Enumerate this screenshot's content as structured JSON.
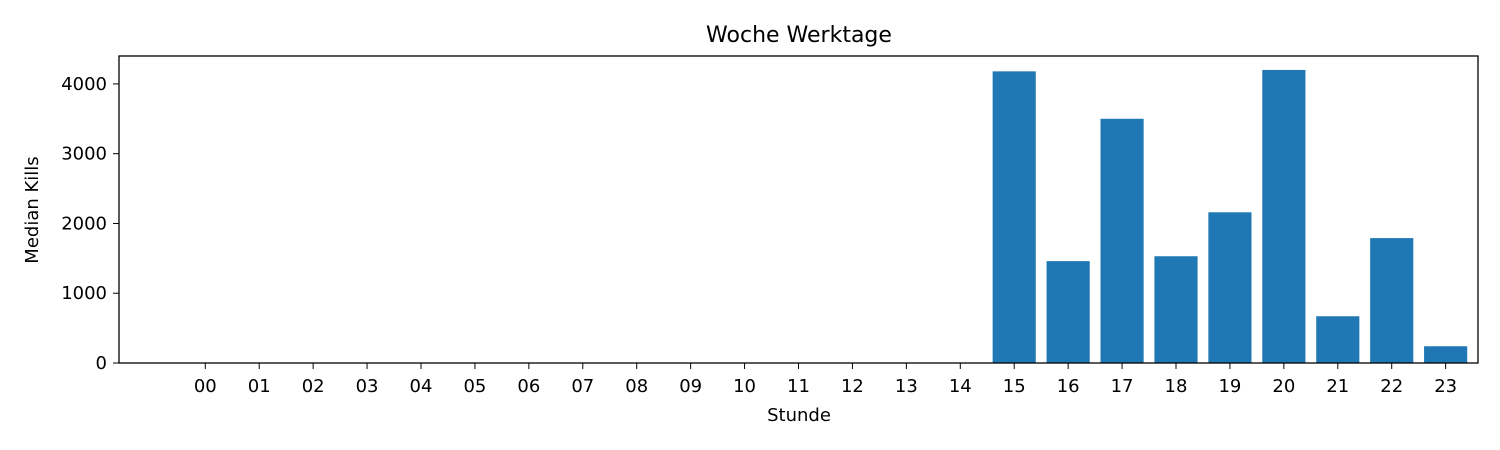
{
  "chart_data": {
    "type": "bar",
    "title": "Woche Werktage",
    "xlabel": "Stunde",
    "ylabel": "Median Kills",
    "categories": [
      "00",
      "01",
      "02",
      "03",
      "04",
      "05",
      "06",
      "07",
      "08",
      "09",
      "10",
      "11",
      "12",
      "13",
      "14",
      "15",
      "16",
      "17",
      "18",
      "19",
      "20",
      "21",
      "22",
      "23"
    ],
    "values": [
      0,
      0,
      0,
      0,
      0,
      0,
      0,
      0,
      0,
      0,
      0,
      0,
      0,
      0,
      0,
      4180,
      1460,
      3500,
      1530,
      2160,
      4200,
      670,
      1790,
      240
    ],
    "ylim": [
      0,
      4400
    ],
    "yticks": [
      0,
      1000,
      2000,
      3000,
      4000
    ],
    "color": "#1f77b4",
    "grid": false,
    "legend": "none"
  }
}
